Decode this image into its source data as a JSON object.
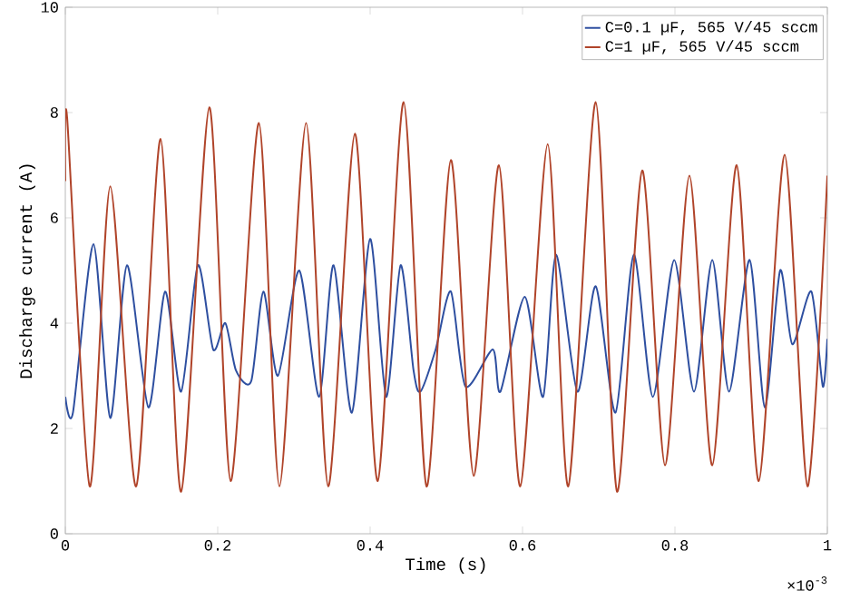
{
  "chart_data": {
    "type": "line",
    "xlabel": "Time (s)",
    "ylabel": "Discharge current (A)",
    "xlim": [
      0,
      1
    ],
    "ylim": [
      0,
      10
    ],
    "xticks": [
      0,
      0.2,
      0.4,
      0.6,
      0.8,
      1
    ],
    "yticks": [
      0,
      2,
      4,
      6,
      8,
      10
    ],
    "legend": "top right",
    "annotations": [
      "×10$^{-3}$"
    ],
    "series": [
      {
        "name": "C=0.1 µF, 565 V/45 sccm",
        "color": "#2e4fa0",
        "x": [
          0,
          0.01,
          0.037,
          0.059,
          0.081,
          0.109,
          0.131,
          0.152,
          0.174,
          0.194,
          0.21,
          0.224,
          0.244,
          0.26,
          0.279,
          0.307,
          0.333,
          0.352,
          0.376,
          0.4,
          0.421,
          0.44,
          0.457,
          0.466,
          0.486,
          0.506,
          0.525,
          0.561,
          0.571,
          0.603,
          0.627,
          0.644,
          0.672,
          0.696,
          0.722,
          0.746,
          0.771,
          0.799,
          0.825,
          0.849,
          0.871,
          0.898,
          0.918,
          0.938,
          0.954,
          0.979,
          0.994,
          1
        ],
        "values": [
          2.6,
          2.3,
          5.5,
          2.2,
          5.1,
          2.4,
          4.6,
          2.7,
          5.1,
          3.5,
          4.0,
          3.1,
          2.9,
          4.6,
          3.0,
          5.0,
          2.6,
          5.1,
          2.3,
          5.6,
          2.6,
          5.1,
          3.1,
          2.7,
          3.5,
          4.6,
          2.8,
          3.5,
          2.7,
          4.5,
          2.6,
          5.3,
          2.7,
          4.7,
          2.3,
          5.3,
          2.6,
          5.2,
          2.7,
          5.2,
          2.7,
          5.2,
          2.4,
          5.0,
          3.6,
          4.6,
          2.8,
          3.7
        ]
      },
      {
        "name": "C=1 µF, 565 V/45 sccm",
        "color": "#b0442a",
        "x": [
          0,
          0.0024,
          0.032,
          0.059,
          0.093,
          0.125,
          0.152,
          0.189,
          0.217,
          0.254,
          0.281,
          0.316,
          0.345,
          0.38,
          0.41,
          0.444,
          0.474,
          0.506,
          0.536,
          0.569,
          0.597,
          0.633,
          0.66,
          0.696,
          0.724,
          0.757,
          0.787,
          0.819,
          0.849,
          0.881,
          0.91,
          0.944,
          0.974,
          1
        ],
        "values": [
          6.7,
          7.9,
          0.9,
          6.6,
          0.9,
          7.5,
          0.8,
          8.1,
          1.0,
          7.8,
          0.9,
          7.8,
          0.9,
          7.6,
          1.0,
          8.2,
          0.9,
          7.1,
          1.1,
          7.0,
          0.9,
          7.4,
          0.9,
          8.2,
          0.8,
          6.9,
          1.3,
          6.8,
          1.3,
          7.0,
          1.0,
          7.2,
          0.9,
          6.8
        ]
      }
    ]
  }
}
